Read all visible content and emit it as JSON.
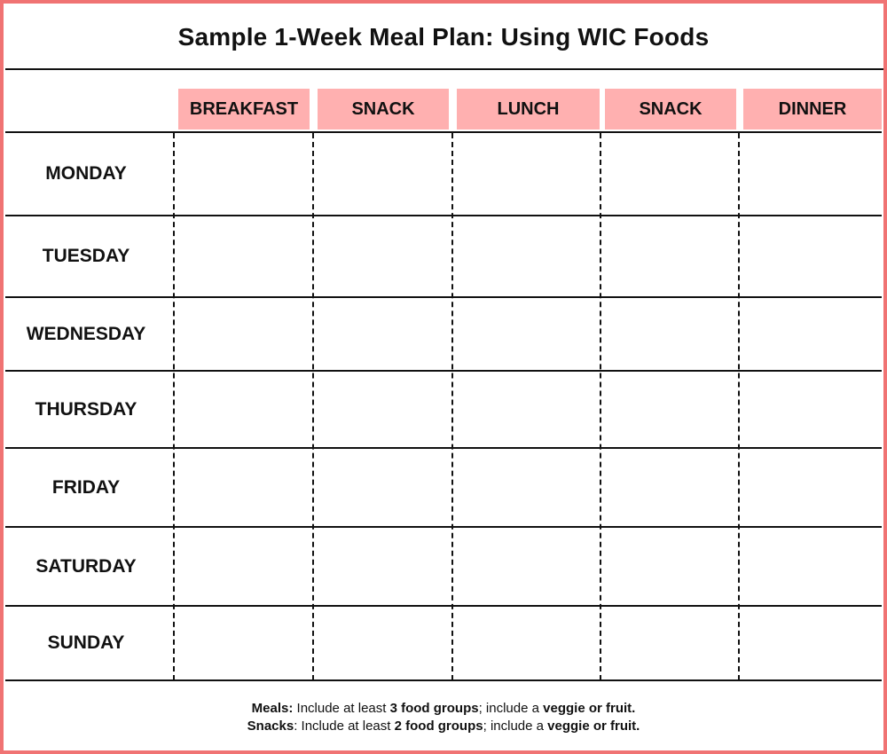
{
  "title": "Sample 1-Week Meal Plan: Using WIC Foods",
  "accent_color": "#ffb0b0",
  "border_color": "#f07373",
  "meal_columns": [
    "BREAKFAST",
    "SNACK",
    "LUNCH",
    "SNACK",
    "DINNER"
  ],
  "days": [
    "MONDAY",
    "TUESDAY",
    "WEDNESDAY",
    "THURSDAY",
    "FRIDAY",
    "SATURDAY",
    "SUNDAY"
  ],
  "footer": {
    "meals": {
      "label": "Meals:",
      "text1": " Include at least ",
      "bold1": "3 food groups",
      "text2": "; include a ",
      "bold2": "veggie or fruit."
    },
    "snacks": {
      "label": "Snacks",
      "text1": ": Include at least ",
      "bold1": "2 food groups",
      "text2": "; include a ",
      "bold2": "veggie or fruit."
    }
  }
}
